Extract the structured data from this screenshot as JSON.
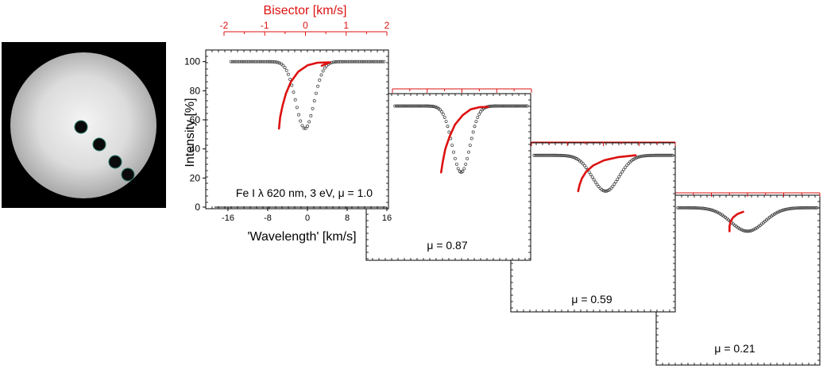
{
  "sun_image": {
    "description_icon": "solar-disk-with-marked-positions",
    "marker_count": 4
  },
  "colors": {
    "profile": "#333333",
    "bisector": "#dd1111",
    "axis": "#000000",
    "bisector_axis": "#dd1111"
  },
  "chart_data": [
    {
      "type": "line",
      "panel_label": "Fe I λ 620 nm, 3 eV, μ = 1.0",
      "xlabel": "'Wavelength' [km/s]",
      "ylabel": "Intensity [%]",
      "top_axis_label": "Bisector [km/s]",
      "xlim": [
        -16,
        16
      ],
      "ylim": [
        0,
        108
      ],
      "xticks": [
        "-16",
        "-8",
        "0",
        "8",
        "16"
      ],
      "yticks": [
        "0",
        "20",
        "40",
        "60",
        "80",
        "100"
      ],
      "top_xlim": [
        -2,
        2
      ],
      "top_xticks": [
        "-2",
        "-1",
        "0",
        "1",
        "2"
      ],
      "series": [
        {
          "role": "line-profile",
          "mu": 1.0,
          "continuum": 100,
          "core": 54,
          "center": -0.5,
          "width": 2.6
        },
        {
          "role": "bisector",
          "points": [
            [
              -0.65,
              54
            ],
            [
              -0.62,
              62
            ],
            [
              -0.56,
              70
            ],
            [
              -0.48,
              78
            ],
            [
              -0.36,
              86
            ],
            [
              -0.18,
              93
            ],
            [
              0.05,
              97.5
            ],
            [
              0.3,
              99.3
            ],
            [
              0.6,
              99.5
            ],
            [
              0.4,
              97.2
            ]
          ]
        }
      ]
    },
    {
      "type": "line",
      "panel_label": "μ = 0.87",
      "xlim": [
        -16,
        16
      ],
      "ylim": [
        0,
        108
      ],
      "top_xlim": [
        -2,
        2
      ],
      "series": [
        {
          "role": "line-profile",
          "mu": 0.87,
          "continuum": 100,
          "core": 57,
          "center": 0,
          "width": 2.9
        },
        {
          "role": "bisector",
          "points": [
            [
              -0.6,
              57
            ],
            [
              -0.55,
              64
            ],
            [
              -0.48,
              72
            ],
            [
              -0.36,
              80
            ],
            [
              -0.2,
              88
            ],
            [
              0.02,
              94
            ],
            [
              0.25,
              97.8
            ],
            [
              0.5,
              99.2
            ],
            [
              0.75,
              99.4
            ]
          ]
        }
      ]
    },
    {
      "type": "line",
      "panel_label": "μ = 0.59",
      "xlim": [
        -16,
        16
      ],
      "ylim": [
        0,
        108
      ],
      "top_xlim": [
        -2,
        2
      ],
      "series": [
        {
          "role": "line-profile",
          "mu": 0.59,
          "continuum": 100,
          "core": 77,
          "center": 0.5,
          "width": 4.2
        },
        {
          "role": "bisector",
          "points": [
            [
              -0.7,
              77
            ],
            [
              -0.66,
              81
            ],
            [
              -0.6,
              85
            ],
            [
              -0.48,
              89.5
            ],
            [
              -0.28,
              93.5
            ],
            [
              0.02,
              96.8
            ],
            [
              0.4,
              98.8
            ],
            [
              0.9,
              100
            ]
          ]
        }
      ]
    },
    {
      "type": "line",
      "panel_label": "μ = 0.21",
      "xlim": [
        -16,
        16
      ],
      "ylim": [
        0,
        108
      ],
      "top_xlim": [
        -2,
        2
      ],
      "series": [
        {
          "role": "line-profile",
          "mu": 0.21,
          "continuum": 100,
          "core": 85,
          "center": 0,
          "width": 5.2
        },
        {
          "role": "bisector",
          "points": [
            [
              -0.5,
              85
            ],
            [
              -0.5,
              88
            ],
            [
              -0.47,
              91
            ],
            [
              -0.4,
              93.8
            ],
            [
              -0.28,
              96
            ],
            [
              -0.12,
              97.4
            ]
          ]
        }
      ]
    }
  ]
}
